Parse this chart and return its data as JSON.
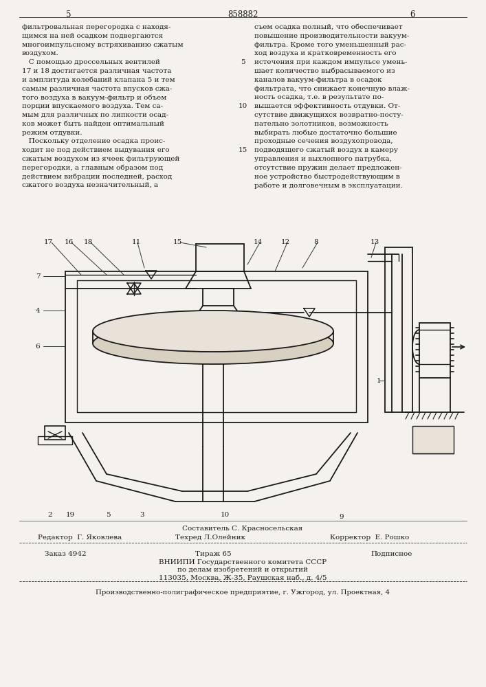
{
  "page_number_left": "5",
  "patent_number": "858882",
  "page_number_right": "6",
  "background_color": "#f5f2ee",
  "text_color": "#1a1a1a",
  "col1_text": [
    "фильтровальная перегородка с находя-",
    "щимся на ней осадком подвергаются",
    "многоимпульсному встряхиванию сжатым",
    "воздухом.",
    "   С помощью дроссельных вентилей",
    "17 и 18 достигается различная частота",
    "и амплитуда колебаний клапана 5 и тем",
    "самым различная частота впусков сжа-",
    "того воздуха в вакуум-фильтр и объем",
    "порции впускаемого воздуха. Тем са-",
    "мым для различных по липкости осад-",
    "ков может быть найден оптимальный",
    "режим отдувки.",
    "   Поскольку отделение осадка проис-",
    "ходит не под действием выдувания его",
    "сжатым воздухом из ячеек фильтрующей",
    "перегородки, а главным образом под",
    "действием вибрации последней, расход",
    "сжатого воздуха незначительный, а"
  ],
  "col2_text": [
    "съем осадка полный, что обеспечивает",
    "повышение производительности вакуум-",
    "фильтра. Кроме того уменьшенный рас-",
    "ход воздуха и кратковременность его",
    "истечения при каждом импульсе умень-",
    "шает количество выбрасываемого из",
    "каналов вакуум-фильтра в осадок",
    "фильтрата, что снижает конечную влаж-",
    "ность осадка, т.е. в результате по-",
    "вышается эффективность отдувки. От-",
    "сутствие движущихся возвратно-посту-",
    "пательно золотников, возможность",
    "выбирать любые достаточно большие",
    "проходные сечения воздухопровода,",
    "подводящего сжатый воздух в камеру",
    "управления и выхлопного патрубка,",
    "отсутствие пружин делает предложен-",
    "ное устройство быстродействующим в",
    "работе и долговечным в эксплуатации."
  ],
  "col2_line_numbers": [
    null,
    null,
    null,
    null,
    "5",
    null,
    null,
    null,
    null,
    "10",
    null,
    null,
    null,
    null,
    "15",
    null,
    null,
    null,
    null
  ],
  "editor_line": "Редактор  Г. Яковлева",
  "compiler_line": "Составитель С. Красносельская",
  "techred_line": "Техред Л.Олейник",
  "corrector_line": "Корректор  Е. Рошко",
  "order_text": "Заказ 4942",
  "edition_text": "Тираж 65",
  "subscription_text": "Подписное",
  "vniipii_line1": "ВНИИПИ Государственного комитета СССР",
  "vniipii_line2": "по делам изобретений и открытий",
  "vniipii_line3": "113035, Москва, Ж-35, Раушская наб., д. 4/5",
  "printer_line": "Производственно-полиграфическое предприятие, г. Ужгород, ул. Проектная, 4"
}
